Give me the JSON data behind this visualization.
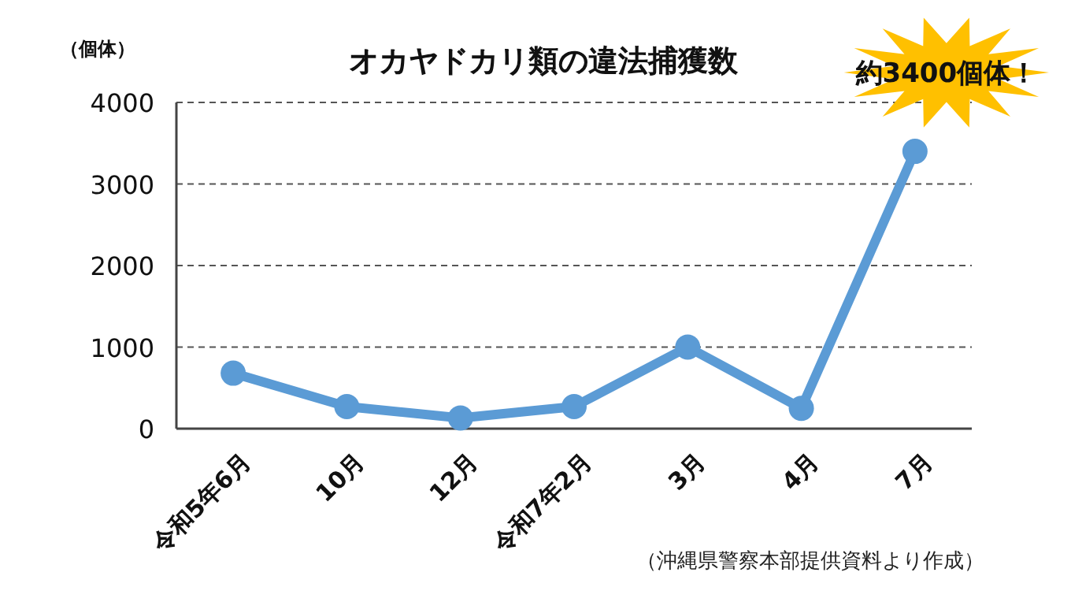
{
  "chart_data": {
    "type": "line",
    "title": "オカヤドカリ類の違法捕獲数",
    "ylabel": "（個体）",
    "categories": [
      "令和5年6月",
      "10月",
      "12月",
      "令和7年2月",
      "3月",
      "4月",
      "7月"
    ],
    "series": [
      {
        "color": "#5b9bd5",
        "values": [
          680,
          270,
          130,
          270,
          1000,
          250,
          3400
        ]
      }
    ],
    "ylim": [
      0,
      4000
    ],
    "yticks": [
      0,
      1000,
      2000,
      3000,
      4000
    ],
    "grid": "y",
    "marker": "circle",
    "line_style": "solid",
    "annotations": [
      {
        "text": "約3400個体！",
        "x": "7月",
        "y": 3400
      },
      "（沖縄県警察本部提供資料より作成）"
    ]
  }
}
